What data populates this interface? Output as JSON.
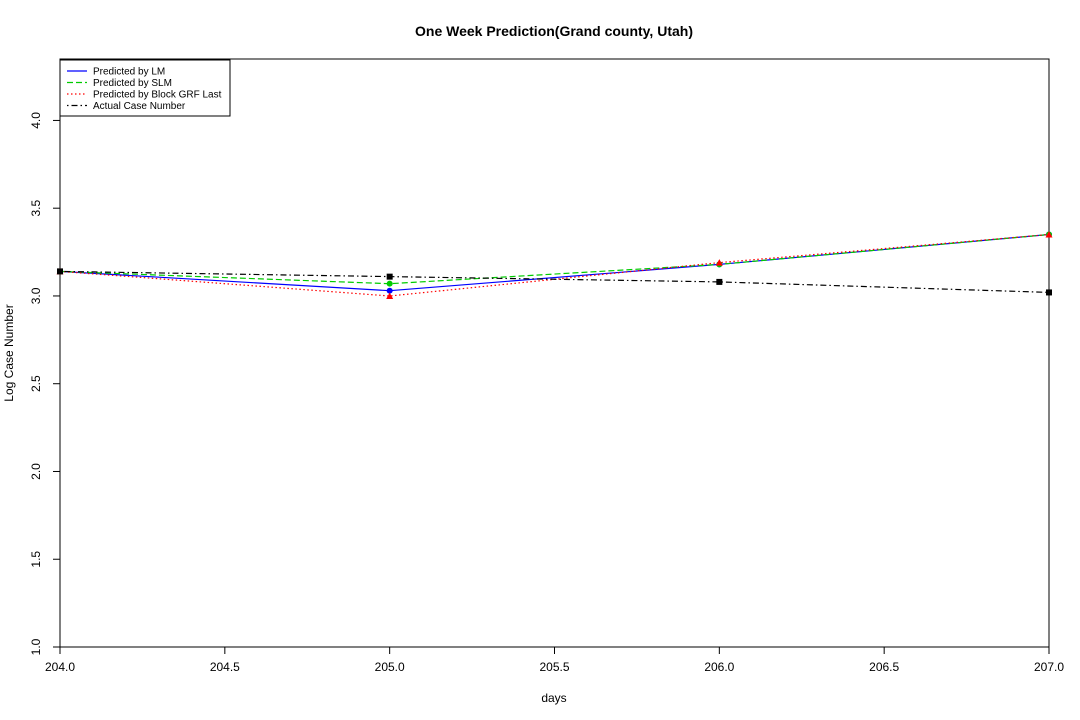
{
  "chart_data": {
    "type": "line",
    "title": "One Week Prediction(Grand county, Utah)",
    "xlabel": "days",
    "ylabel": "Log Case Number",
    "xlim": [
      204.0,
      207.0
    ],
    "ylim": [
      1.0,
      4.0
    ],
    "x_ticks": [
      "204.0",
      "204.5",
      "205.0",
      "205.5",
      "206.0",
      "206.5",
      "207.0"
    ],
    "y_ticks": [
      "1.0",
      "1.5",
      "2.0",
      "2.5",
      "3.0",
      "3.5",
      "4.0"
    ],
    "legend_position": "top-left",
    "grid": false,
    "x": [
      204,
      205,
      206,
      207
    ],
    "series": [
      {
        "name": "Predicted by LM",
        "values": [
          3.14,
          3.03,
          3.18,
          3.35
        ],
        "color": "#0000ff",
        "dash": "solid",
        "marker": "circle"
      },
      {
        "name": "Predicted by SLM",
        "values": [
          3.14,
          3.07,
          3.18,
          3.35
        ],
        "color": "#00cc00",
        "dash": "dashed",
        "marker": "circle"
      },
      {
        "name": "Predicted by Block GRF Last",
        "values": [
          3.14,
          3.0,
          3.19,
          3.35
        ],
        "color": "#ff0000",
        "dash": "dotted",
        "marker": "triangle"
      },
      {
        "name": "Actual Case Number",
        "values": [
          3.14,
          3.11,
          3.08,
          3.02
        ],
        "color": "#000000",
        "dash": "dotdash",
        "marker": "square"
      }
    ]
  }
}
